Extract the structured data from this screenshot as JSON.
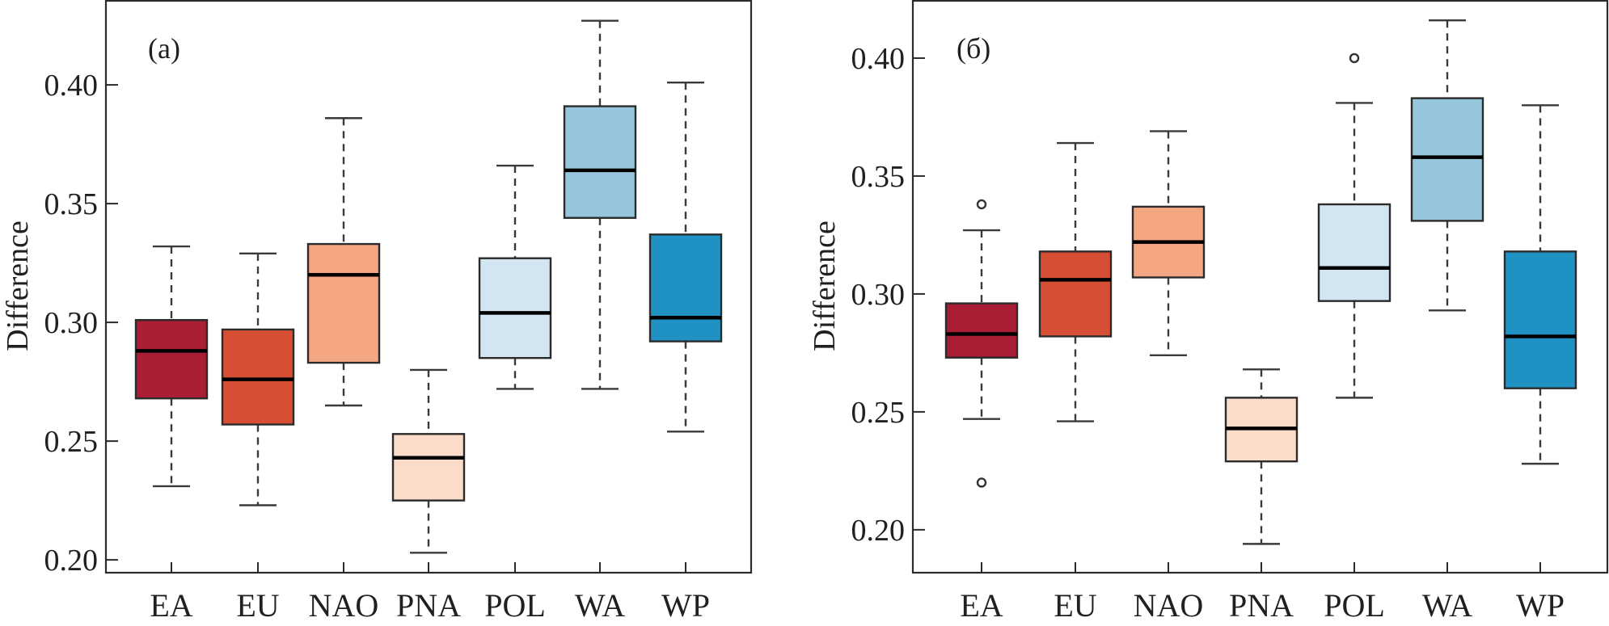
{
  "chart_data": [
    {
      "type": "box",
      "panel_label": "(a)",
      "title": "",
      "xlabel": "",
      "ylabel": "Difference",
      "ylim": [
        0.1946,
        0.4354
      ],
      "yticks": [
        0.2,
        0.25,
        0.3,
        0.35,
        0.4
      ],
      "ytick_labels": [
        "0.20",
        "0.25",
        "0.30",
        "0.35",
        "0.40"
      ],
      "grid": false,
      "categories": [
        "EA",
        "EU",
        "NAO",
        "PNA",
        "POL",
        "WA",
        "WP"
      ],
      "colors": [
        "#a91e35",
        "#d64f34",
        "#f4a683",
        "#fbdcc8",
        "#d2e5f0",
        "#96c6dc",
        "#2091c3"
      ],
      "boxes": [
        {
          "name": "EA",
          "whisker_low": 0.231,
          "q1": 0.268,
          "median": 0.288,
          "q3": 0.301,
          "whisker_high": 0.332,
          "outliers": []
        },
        {
          "name": "EU",
          "whisker_low": 0.223,
          "q1": 0.257,
          "median": 0.276,
          "q3": 0.297,
          "whisker_high": 0.329,
          "outliers": []
        },
        {
          "name": "NAO",
          "whisker_low": 0.265,
          "q1": 0.283,
          "median": 0.32,
          "q3": 0.333,
          "whisker_high": 0.386,
          "outliers": []
        },
        {
          "name": "PNA",
          "whisker_low": 0.203,
          "q1": 0.225,
          "median": 0.243,
          "q3": 0.253,
          "whisker_high": 0.28,
          "outliers": []
        },
        {
          "name": "POL",
          "whisker_low": 0.272,
          "q1": 0.285,
          "median": 0.304,
          "q3": 0.327,
          "whisker_high": 0.366,
          "outliers": []
        },
        {
          "name": "WA",
          "whisker_low": 0.272,
          "q1": 0.344,
          "median": 0.364,
          "q3": 0.391,
          "whisker_high": 0.427,
          "outliers": []
        },
        {
          "name": "WP",
          "whisker_low": 0.254,
          "q1": 0.292,
          "median": 0.302,
          "q3": 0.337,
          "whisker_high": 0.401,
          "outliers": []
        }
      ]
    },
    {
      "type": "box",
      "panel_label": "(б)",
      "title": "",
      "xlabel": "",
      "ylabel": "Difference",
      "ylim": [
        0.1818,
        0.4243
      ],
      "yticks": [
        0.2,
        0.25,
        0.3,
        0.35,
        0.4
      ],
      "ytick_labels": [
        "0.20",
        "0.25",
        "0.30",
        "0.35",
        "0.40"
      ],
      "grid": false,
      "categories": [
        "EA",
        "EU",
        "NAO",
        "PNA",
        "POL",
        "WA",
        "WP"
      ],
      "colors": [
        "#a91e35",
        "#d64f34",
        "#f4a683",
        "#fbdcc8",
        "#d2e5f0",
        "#96c6dc",
        "#2091c3"
      ],
      "boxes": [
        {
          "name": "EA",
          "whisker_low": 0.247,
          "q1": 0.273,
          "median": 0.283,
          "q3": 0.296,
          "whisker_high": 0.327,
          "outliers": [
            0.338,
            0.22
          ]
        },
        {
          "name": "EU",
          "whisker_low": 0.246,
          "q1": 0.282,
          "median": 0.306,
          "q3": 0.318,
          "whisker_high": 0.364,
          "outliers": []
        },
        {
          "name": "NAO",
          "whisker_low": 0.274,
          "q1": 0.307,
          "median": 0.322,
          "q3": 0.337,
          "whisker_high": 0.369,
          "outliers": []
        },
        {
          "name": "PNA",
          "whisker_low": 0.194,
          "q1": 0.229,
          "median": 0.243,
          "q3": 0.256,
          "whisker_high": 0.268,
          "outliers": []
        },
        {
          "name": "POL",
          "whisker_low": 0.256,
          "q1": 0.297,
          "median": 0.311,
          "q3": 0.338,
          "whisker_high": 0.381,
          "outliers": [
            0.4
          ]
        },
        {
          "name": "WA",
          "whisker_low": 0.293,
          "q1": 0.331,
          "median": 0.358,
          "q3": 0.383,
          "whisker_high": 0.416,
          "outliers": []
        },
        {
          "name": "WP",
          "whisker_low": 0.228,
          "q1": 0.26,
          "median": 0.282,
          "q3": 0.318,
          "whisker_high": 0.38,
          "outliers": []
        }
      ]
    }
  ]
}
